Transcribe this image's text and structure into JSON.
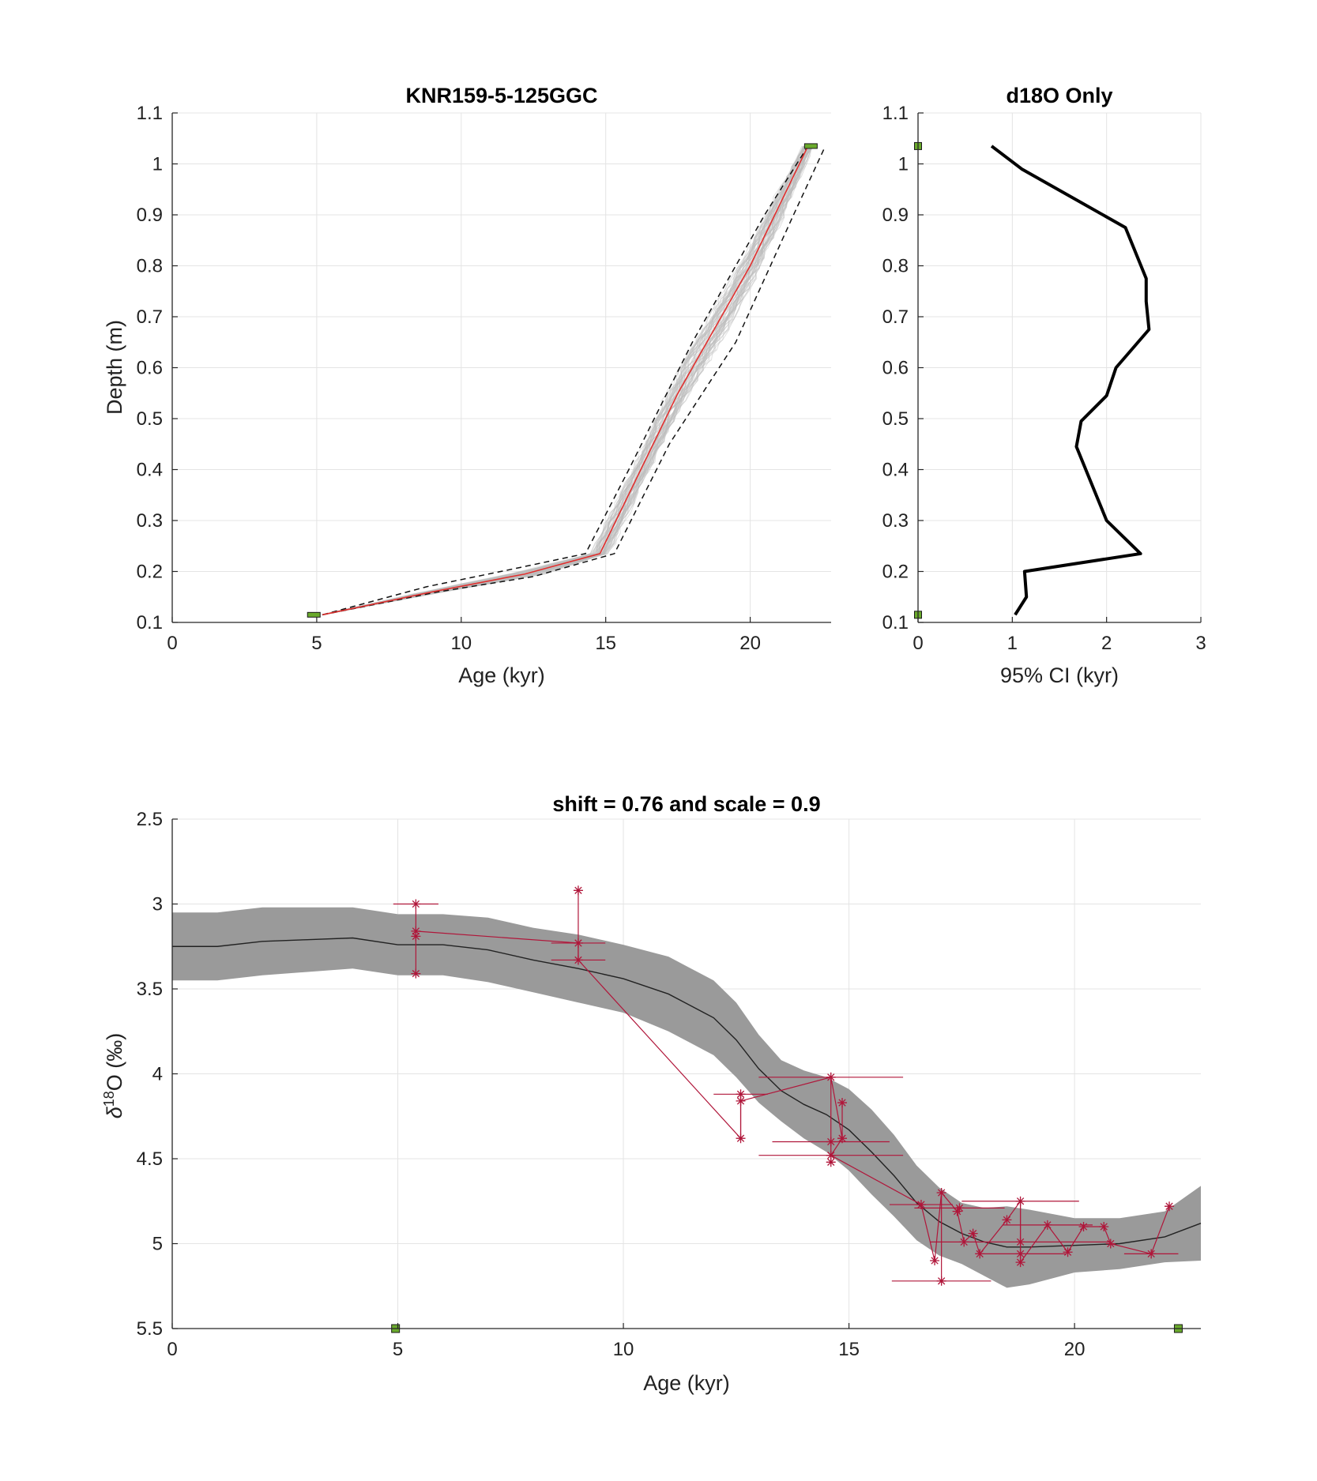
{
  "colors": {
    "ensemble": "#bdbdbd",
    "median": "#e0302f",
    "ci_dashed": "#111111",
    "anchor_fill": "#6aaa2c",
    "ci_curve": "#000000",
    "band": "#9a9a9a",
    "mean_line": "#222222",
    "samples": "#b0163a"
  },
  "chart_data": [
    {
      "id": "age-depth",
      "type": "line",
      "title": "KNR159-5-125GGC",
      "xlabel": "Age (kyr)",
      "ylabel": "Depth (m)",
      "xlim": [
        0,
        22.8
      ],
      "ylim": [
        0.1,
        1.1
      ],
      "grid": true,
      "x_ticks": [
        0,
        5,
        10,
        15,
        20
      ],
      "y_ticks": [
        0.1,
        0.2,
        0.3,
        0.4,
        0.5,
        0.6,
        0.7,
        0.8,
        0.9,
        1,
        1.1
      ],
      "x_tick_labels": [
        "0",
        "5",
        "10",
        "15",
        "20"
      ],
      "y_tick_labels": [
        "0.1",
        "0.2",
        "0.3",
        "0.4",
        "0.5",
        "0.6",
        "0.7",
        "0.8",
        "0.9",
        "1",
        "1.1"
      ],
      "series": [
        {
          "role": "median",
          "x": [
            5.2,
            9.0,
            12.2,
            14.8,
            17.5,
            20.0,
            22.0
          ],
          "y": [
            0.115,
            0.16,
            0.195,
            0.235,
            0.55,
            0.8,
            1.035
          ]
        },
        {
          "role": "ci-lower",
          "x": [
            5.2,
            8.8,
            11.8,
            14.3,
            15.8,
            18.0,
            20.5,
            22.0
          ],
          "y": [
            0.115,
            0.17,
            0.205,
            0.235,
            0.4,
            0.65,
            0.9,
            1.035
          ]
        },
        {
          "role": "ci-upper",
          "x": [
            5.2,
            9.2,
            12.5,
            15.3,
            17.2,
            19.5,
            21.5,
            22.6
          ],
          "y": [
            0.115,
            0.16,
            0.19,
            0.235,
            0.45,
            0.65,
            0.9,
            1.035
          ]
        }
      ],
      "anchors": [
        {
          "x": 4.9,
          "y": 0.115
        },
        {
          "x": 22.1,
          "y": 1.035
        }
      ]
    },
    {
      "id": "ci-width",
      "type": "line",
      "title": "d18O Only",
      "xlabel": "95% CI (kyr)",
      "xlim": [
        0,
        3
      ],
      "ylim": [
        0.1,
        1.1
      ],
      "grid": true,
      "x_ticks": [
        0,
        1,
        2,
        3
      ],
      "y_ticks": [
        0.1,
        0.2,
        0.3,
        0.4,
        0.5,
        0.6,
        0.7,
        0.8,
        0.9,
        1,
        1.1
      ],
      "x_tick_labels": [
        "0",
        "1",
        "2",
        "3"
      ],
      "y_tick_labels": [
        "0.1",
        "0.2",
        "0.3",
        "0.4",
        "0.5",
        "0.6",
        "0.7",
        "0.8",
        "0.9",
        "1",
        "1.1"
      ],
      "series": [
        {
          "role": "ci-width",
          "x": [
            1.03,
            1.15,
            1.13,
            2.36,
            2.0,
            1.68,
            1.73,
            2.0,
            2.1,
            2.45,
            2.42,
            2.42,
            2.2,
            1.1,
            0.78
          ],
          "y": [
            0.115,
            0.15,
            0.2,
            0.235,
            0.3,
            0.445,
            0.495,
            0.545,
            0.6,
            0.675,
            0.73,
            0.775,
            0.875,
            0.99,
            1.035
          ]
        }
      ],
      "anchors": [
        {
          "x": 0,
          "y": 0.115
        },
        {
          "x": 0,
          "y": 1.035
        }
      ]
    },
    {
      "id": "d18o-stack",
      "type": "line",
      "title": "shift = 0.76 and scale = 0.9",
      "xlabel": "Age (kyr)",
      "ylabel_main": "δ",
      "ylabel_sup": "18",
      "ylabel_rest": "O (‰)",
      "xlim": [
        0,
        22.8
      ],
      "ylim": [
        2.5,
        5.5
      ],
      "y_reversed": true,
      "grid": true,
      "x_ticks": [
        0,
        5,
        10,
        15,
        20
      ],
      "y_ticks": [
        2.5,
        3,
        3.5,
        4,
        4.5,
        5,
        5.5
      ],
      "x_tick_labels": [
        "0",
        "5",
        "10",
        "15",
        "20"
      ],
      "y_tick_labels": [
        "2.5",
        "3",
        "3.5",
        "4",
        "4.5",
        "5",
        "5.5"
      ],
      "mean": {
        "x": [
          0,
          1,
          2,
          3,
          4,
          5,
          6,
          7,
          8,
          9,
          10,
          11,
          11.5,
          12,
          12.5,
          13,
          13.5,
          14,
          14.5,
          15,
          15.5,
          16,
          16.5,
          17,
          17.5,
          18,
          18.5,
          19,
          20,
          21,
          22,
          22.8
        ],
        "y": [
          3.25,
          3.25,
          3.22,
          3.21,
          3.2,
          3.24,
          3.24,
          3.27,
          3.33,
          3.38,
          3.44,
          3.53,
          3.6,
          3.67,
          3.8,
          3.97,
          4.1,
          4.18,
          4.24,
          4.33,
          4.46,
          4.6,
          4.76,
          4.87,
          4.94,
          4.99,
          5.02,
          5.02,
          5.01,
          5.0,
          4.96,
          4.88
        ]
      },
      "band_half_width": [
        0.2,
        0.2,
        0.2,
        0.19,
        0.18,
        0.18,
        0.18,
        0.19,
        0.19,
        0.2,
        0.2,
        0.22,
        0.22,
        0.22,
        0.22,
        0.2,
        0.18,
        0.2,
        0.22,
        0.24,
        0.25,
        0.24,
        0.22,
        0.2,
        0.18,
        0.2,
        0.24,
        0.22,
        0.16,
        0.15,
        0.15,
        0.22
      ],
      "samples": [
        {
          "x": 5.4,
          "y": 3.0,
          "xerr": 0.5
        },
        {
          "x": 5.4,
          "y": 3.16,
          "xerr": 0.0
        },
        {
          "x": 5.4,
          "y": 3.19,
          "xerr": 0.0
        },
        {
          "x": 5.4,
          "y": 3.41,
          "xerr": 0.0
        },
        {
          "x": 9.0,
          "y": 2.92,
          "xerr": 0.0
        },
        {
          "x": 9.0,
          "y": 3.23,
          "xerr": 0.6
        },
        {
          "x": 9.0,
          "y": 3.33,
          "xerr": 0.6
        },
        {
          "x": 12.6,
          "y": 4.12,
          "xerr": 0.6
        },
        {
          "x": 12.6,
          "y": 4.16,
          "xerr": 0.0
        },
        {
          "x": 12.6,
          "y": 4.38,
          "xerr": 0.0
        },
        {
          "x": 14.6,
          "y": 4.02,
          "xerr": 1.6
        },
        {
          "x": 14.6,
          "y": 4.4,
          "xerr": 1.3
        },
        {
          "x": 14.6,
          "y": 4.48,
          "xerr": 1.6
        },
        {
          "x": 14.6,
          "y": 4.52,
          "xerr": 0.0
        },
        {
          "x": 14.85,
          "y": 4.17,
          "xerr": 0.0
        },
        {
          "x": 14.85,
          "y": 4.38,
          "xerr": 0.0
        },
        {
          "x": 16.6,
          "y": 4.77,
          "xerr": 0.7
        },
        {
          "x": 16.9,
          "y": 5.1,
          "xerr": 0.0
        },
        {
          "x": 17.05,
          "y": 4.7,
          "xerr": 0.0
        },
        {
          "x": 17.05,
          "y": 5.22,
          "xerr": 1.1
        },
        {
          "x": 17.4,
          "y": 4.81,
          "xerr": 0.0
        },
        {
          "x": 17.45,
          "y": 4.79,
          "xerr": 1.0
        },
        {
          "x": 17.55,
          "y": 4.99,
          "xerr": 0.0
        },
        {
          "x": 17.75,
          "y": 4.94,
          "xerr": 0.0
        },
        {
          "x": 17.9,
          "y": 5.06,
          "xerr": 0.0
        },
        {
          "x": 18.5,
          "y": 4.86,
          "xerr": 0.0
        },
        {
          "x": 18.8,
          "y": 4.75,
          "xerr": 1.3
        },
        {
          "x": 18.8,
          "y": 4.99,
          "xerr": 2.0
        },
        {
          "x": 18.8,
          "y": 5.06,
          "xerr": 1.0
        },
        {
          "x": 18.8,
          "y": 5.11,
          "xerr": 0.0
        },
        {
          "x": 19.4,
          "y": 4.89,
          "xerr": 1.0
        },
        {
          "x": 19.85,
          "y": 5.05,
          "xerr": 0.0
        },
        {
          "x": 20.2,
          "y": 4.9,
          "xerr": 0.0
        },
        {
          "x": 20.65,
          "y": 4.9,
          "xerr": 0.0
        },
        {
          "x": 20.8,
          "y": 5.0,
          "xerr": 0.0
        },
        {
          "x": 21.7,
          "y": 5.06,
          "xerr": 0.6
        },
        {
          "x": 22.1,
          "y": 4.78,
          "xerr": 0.0
        }
      ],
      "vertical_links": [
        {
          "x": 5.4,
          "y1": 3.0,
          "y2": 3.41
        },
        {
          "x": 9.0,
          "y1": 2.92,
          "y2": 3.33
        },
        {
          "x": 12.6,
          "y1": 4.12,
          "y2": 4.38
        },
        {
          "x": 14.6,
          "y1": 4.02,
          "y2": 4.52
        },
        {
          "x": 14.85,
          "y1": 4.17,
          "y2": 4.38
        },
        {
          "x": 17.05,
          "y1": 4.7,
          "y2": 5.22
        },
        {
          "x": 18.8,
          "y1": 4.75,
          "y2": 5.11
        }
      ],
      "path": {
        "x": [
          5.4,
          9.0,
          9.0,
          12.6,
          12.6,
          14.6,
          14.85,
          14.6,
          16.6,
          16.9,
          17.05,
          17.4,
          17.55,
          17.75,
          17.9,
          18.5,
          18.8,
          18.8,
          19.4,
          19.85,
          20.2,
          20.65,
          20.8,
          21.7,
          22.1
        ],
        "y": [
          3.16,
          3.23,
          3.33,
          4.38,
          4.16,
          4.02,
          4.38,
          4.48,
          4.77,
          5.1,
          4.7,
          4.81,
          4.99,
          4.94,
          5.06,
          4.86,
          4.75,
          5.11,
          4.89,
          5.05,
          4.9,
          4.9,
          5.0,
          5.06,
          4.78
        ]
      },
      "anchors": [
        {
          "x": 4.95,
          "y": 5.5
        },
        {
          "x": 22.3,
          "y": 5.5
        }
      ]
    }
  ]
}
